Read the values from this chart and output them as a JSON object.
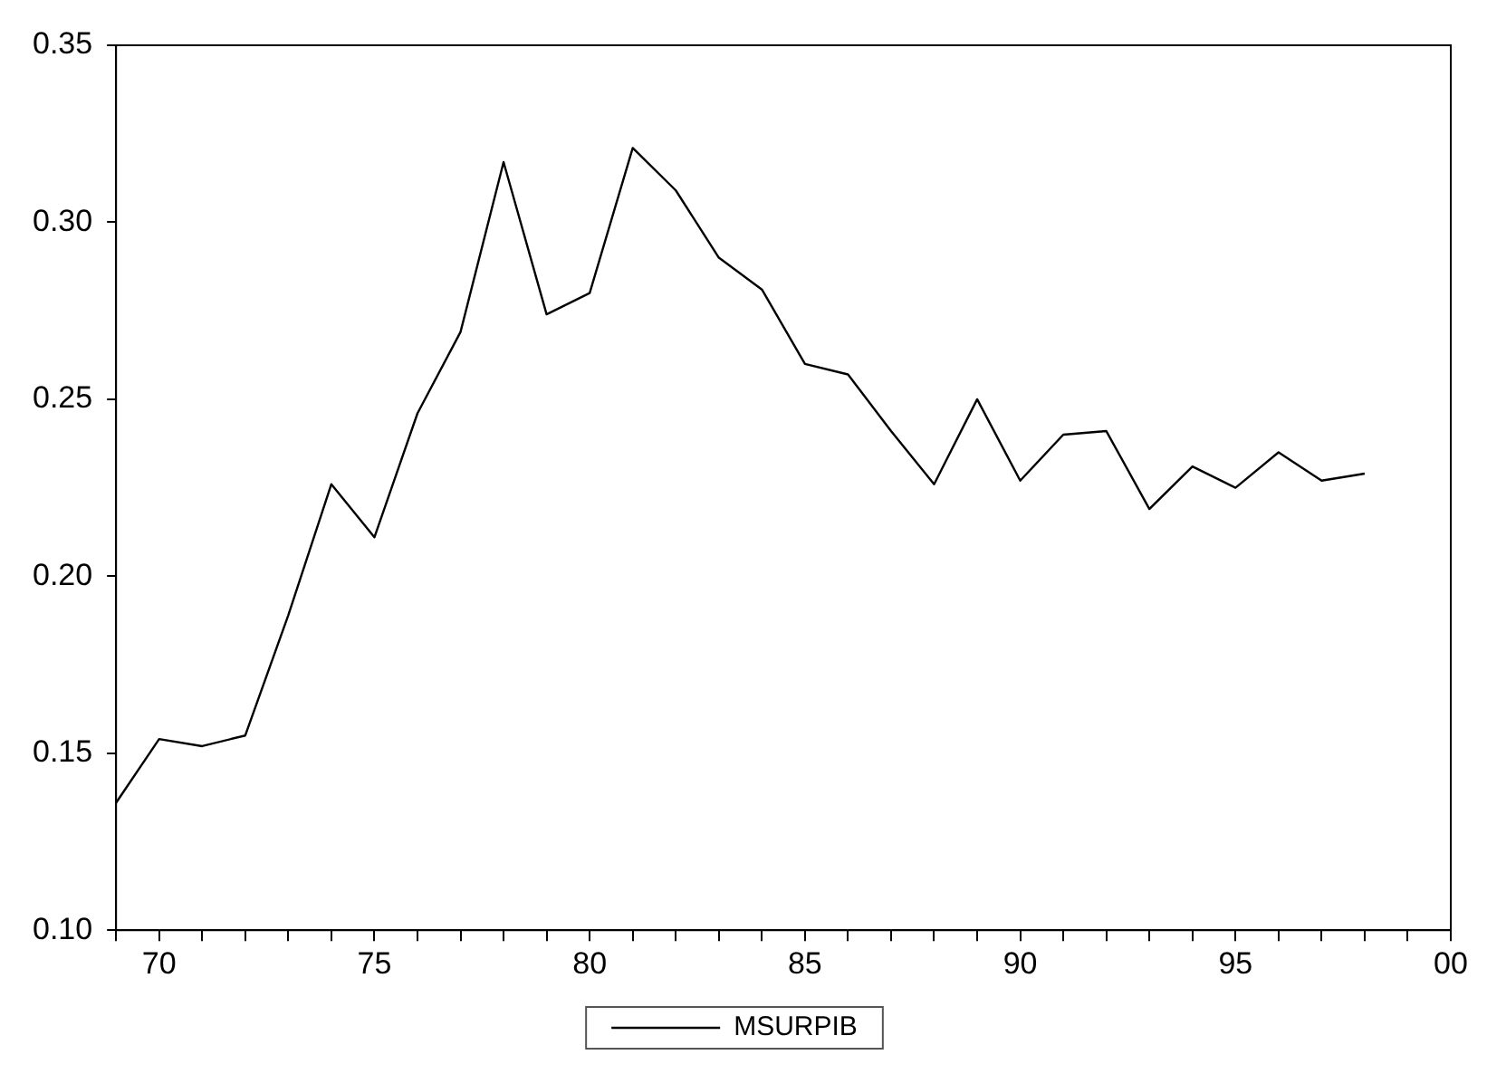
{
  "chart_data": {
    "type": "line",
    "x": [
      1969,
      1970,
      1971,
      1972,
      1973,
      1974,
      1975,
      1976,
      1977,
      1978,
      1979,
      1980,
      1981,
      1982,
      1983,
      1984,
      1985,
      1986,
      1987,
      1988,
      1989,
      1990,
      1991,
      1992,
      1993,
      1994,
      1995,
      1996,
      1997,
      1998
    ],
    "series": [
      {
        "name": "MSURPIB",
        "color": "#000000",
        "values": [
          0.136,
          0.154,
          0.152,
          0.155,
          0.189,
          0.226,
          0.211,
          0.246,
          0.269,
          0.317,
          0.274,
          0.28,
          0.321,
          0.309,
          0.29,
          0.281,
          0.26,
          0.257,
          0.241,
          0.226,
          0.25,
          0.227,
          0.24,
          0.241,
          0.219,
          0.231,
          0.225,
          0.235,
          0.227,
          0.229
        ]
      }
    ],
    "xlim": [
      1969,
      2000
    ],
    "xticks": [
      {
        "value": 1969,
        "label": null
      },
      {
        "value": 1970,
        "label": "70"
      },
      {
        "value": 1971,
        "label": null
      },
      {
        "value": 1972,
        "label": null
      },
      {
        "value": 1973,
        "label": null
      },
      {
        "value": 1974,
        "label": null
      },
      {
        "value": 1975,
        "label": "75"
      },
      {
        "value": 1976,
        "label": null
      },
      {
        "value": 1977,
        "label": null
      },
      {
        "value": 1978,
        "label": null
      },
      {
        "value": 1979,
        "label": null
      },
      {
        "value": 1980,
        "label": "80"
      },
      {
        "value": 1981,
        "label": null
      },
      {
        "value": 1982,
        "label": null
      },
      {
        "value": 1983,
        "label": null
      },
      {
        "value": 1984,
        "label": null
      },
      {
        "value": 1985,
        "label": "85"
      },
      {
        "value": 1986,
        "label": null
      },
      {
        "value": 1987,
        "label": null
      },
      {
        "value": 1988,
        "label": null
      },
      {
        "value": 1989,
        "label": null
      },
      {
        "value": 1990,
        "label": "90"
      },
      {
        "value": 1991,
        "label": null
      },
      {
        "value": 1992,
        "label": null
      },
      {
        "value": 1993,
        "label": null
      },
      {
        "value": 1994,
        "label": null
      },
      {
        "value": 1995,
        "label": "95"
      },
      {
        "value": 1996,
        "label": null
      },
      {
        "value": 1997,
        "label": null
      },
      {
        "value": 1998,
        "label": null
      },
      {
        "value": 1999,
        "label": null
      },
      {
        "value": 2000,
        "label": "00"
      }
    ],
    "ylim": [
      0.1,
      0.35
    ],
    "yticks": [
      {
        "value": 0.1,
        "label": "0.10"
      },
      {
        "value": 0.15,
        "label": "0.15"
      },
      {
        "value": 0.2,
        "label": "0.20"
      },
      {
        "value": 0.25,
        "label": "0.25"
      },
      {
        "value": 0.3,
        "label": "0.30"
      },
      {
        "value": 0.35,
        "label": "0.35"
      }
    ],
    "grid": false,
    "legend": "bottom",
    "marker": "none",
    "line_style": "solid"
  }
}
